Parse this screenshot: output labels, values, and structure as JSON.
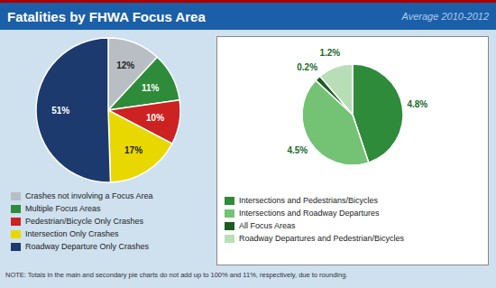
{
  "chart_data": [
    {
      "type": "pie",
      "title": "Fatalities by FHWA Focus Area",
      "subtitle": "Average 2010-2012",
      "categories": [
        "Crashes not involving a Focus Area",
        "Multiple Focus Areas",
        "Pedestrian/Bicycle Only Crashes",
        "Intersection Only Crashes",
        "Roadway Departure Only Crashes"
      ],
      "values": [
        12,
        11,
        10,
        17,
        51
      ],
      "value_labels": [
        "12%",
        "11%",
        "10%",
        "17%",
        "51%"
      ],
      "colors": [
        "#b8bec4",
        "#2e8b3a",
        "#cc2222",
        "#e8d800",
        "#1c3a6e"
      ],
      "data_labels": true,
      "legend": "bottom",
      "annotations": [
        "NOTE: Totals in the main and secondary pie charts do not add up to 100% and 11%, respectively, due to rounding."
      ]
    },
    {
      "type": "pie",
      "categories": [
        "Intersections and Pedestrians/Bicycles",
        "Intersections and Roadway Departures",
        "All Focus Areas",
        "Roadway Departures and Pedestrian/Bicycles"
      ],
      "values": [
        4.8,
        4.5,
        0.2,
        1.2
      ],
      "value_labels": [
        "4.8%",
        "4.5%",
        "0.2%",
        "1.2%"
      ],
      "colors": [
        "#2e8b3a",
        "#74c274",
        "#1a5c22",
        "#b8deb8"
      ],
      "data_labels": true,
      "legend": "bottom"
    }
  ]
}
